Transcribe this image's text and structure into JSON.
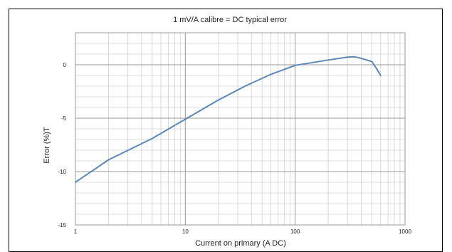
{
  "chart_data": {
    "type": "line",
    "title": "1 mV/A calibre = DC typical error",
    "xlabel": "Current on primary (A DC)",
    "ylabel": "Error (%)T",
    "x_scale": "log",
    "xlim": [
      1,
      1000
    ],
    "ylim": [
      -15,
      3
    ],
    "x_ticks": [
      1,
      10,
      100,
      1000
    ],
    "x_tick_labels": [
      "1",
      "10",
      "100",
      "1000"
    ],
    "y_ticks": [
      0,
      -5,
      -10,
      -15
    ],
    "y_tick_labels": [
      "0",
      "-5",
      "-10",
      "-15"
    ],
    "grid": true,
    "series": [
      {
        "color": "#5b86b6",
        "x": [
          1,
          2,
          5,
          10,
          20,
          35,
          60,
          100,
          200,
          300,
          350,
          400,
          500,
          550,
          600
        ],
        "y": [
          -11.0,
          -8.9,
          -6.9,
          -5.1,
          -3.3,
          -2.0,
          -0.9,
          -0.05,
          0.45,
          0.72,
          0.75,
          0.6,
          0.3,
          -0.35,
          -1.0
        ]
      }
    ]
  },
  "colors": {
    "frame": "#000000",
    "grid_major": "#999999",
    "grid_minor": "#d0d0d0",
    "line": "#5b86b6"
  }
}
